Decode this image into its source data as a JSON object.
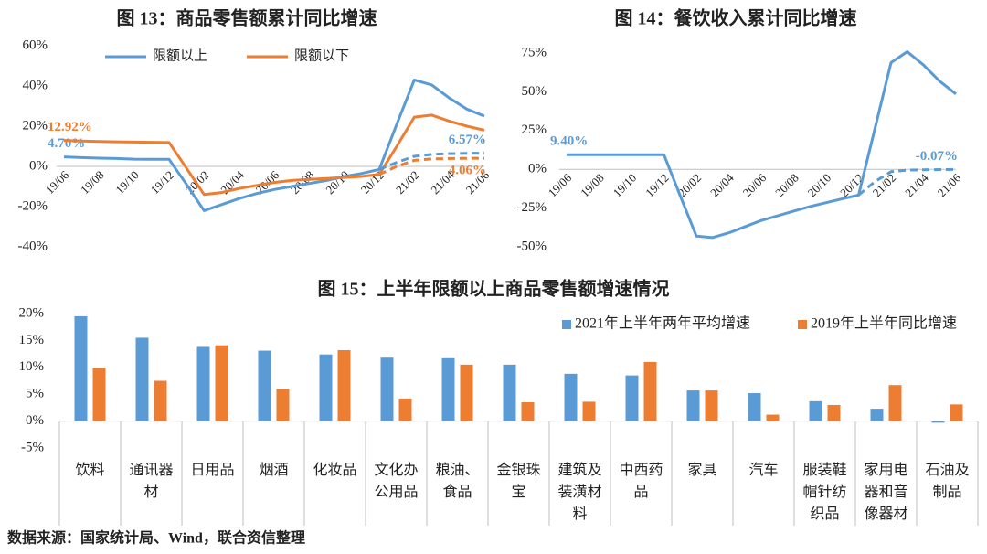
{
  "chart_data": [
    {
      "type": "line",
      "title": "图 13：商品零售额累计同比增速",
      "legend": "top",
      "categories": [
        "19/06",
        null,
        "19/08",
        null,
        "19/10",
        null,
        "19/12",
        null,
        "20/02",
        null,
        "20/04",
        null,
        "20/06",
        null,
        "20/08",
        null,
        "20/10",
        null,
        "20/12",
        null,
        "21/02",
        null,
        "21/04",
        null,
        "21/06"
      ],
      "ylim": [
        -40,
        60
      ],
      "yticks": [
        {
          "value": -40,
          "label": "-40%"
        },
        {
          "value": -20,
          "label": "-20%"
        },
        {
          "value": 0,
          "label": "0%"
        },
        {
          "value": 20,
          "label": "20%"
        },
        {
          "value": 40,
          "label": "40%"
        },
        {
          "value": 60,
          "label": "60%"
        }
      ],
      "series": [
        {
          "name": "限额以上",
          "color": "#5b9bd5",
          "values": [
            4.7,
            4.4,
            4.1,
            3.9,
            3.6,
            3.5,
            3.5,
            -9,
            -22,
            -19,
            -16,
            -13.5,
            -11.5,
            -10,
            -8.5,
            -7,
            -5,
            -3.5,
            -1.5,
            21,
            43,
            40.5,
            34,
            28.5,
            25
          ],
          "value_labels": [
            "4.70%",
            null,
            null,
            null,
            null,
            null,
            null,
            null,
            null,
            null,
            null,
            null,
            null,
            null,
            null,
            null,
            null,
            null,
            null,
            null,
            null,
            null,
            null,
            null,
            null
          ]
        },
        {
          "name": "限额以下",
          "color": "#ed7d31",
          "values": [
            12.92,
            12.6,
            12.4,
            12.2,
            12.1,
            12.0,
            11.9,
            -1,
            -14,
            -13,
            -11,
            -9.5,
            -8,
            -7,
            -6.5,
            -6,
            -5.5,
            -5,
            -4,
            10,
            24.5,
            25.5,
            22.5,
            20,
            18
          ],
          "value_labels": [
            "12.92%",
            null,
            null,
            null,
            null,
            null,
            null,
            null,
            null,
            null,
            null,
            null,
            null,
            null,
            null,
            null,
            null,
            null,
            null,
            null,
            null,
            null,
            null,
            null,
            null
          ]
        },
        {
          "color": "#5b9bd5",
          "dashed": true,
          "values": [
            null,
            null,
            null,
            null,
            null,
            null,
            null,
            null,
            null,
            null,
            null,
            null,
            null,
            null,
            null,
            null,
            null,
            null,
            -1.5,
            2,
            5,
            6,
            6.3,
            6.5,
            6.57
          ],
          "value_labels": [
            null,
            null,
            null,
            null,
            null,
            null,
            null,
            null,
            null,
            null,
            null,
            null,
            null,
            null,
            null,
            null,
            null,
            null,
            null,
            null,
            null,
            null,
            null,
            null,
            "6.57%"
          ]
        },
        {
          "color": "#ed7d31",
          "dashed": true,
          "values": [
            null,
            null,
            null,
            null,
            null,
            null,
            null,
            null,
            null,
            null,
            null,
            null,
            null,
            null,
            null,
            null,
            null,
            null,
            -4,
            0,
            3,
            3.7,
            3.9,
            4.0,
            4.06
          ],
          "value_labels": [
            null,
            null,
            null,
            null,
            null,
            null,
            null,
            null,
            null,
            null,
            null,
            null,
            null,
            null,
            null,
            null,
            null,
            null,
            null,
            null,
            null,
            null,
            null,
            null,
            "4.06%"
          ]
        }
      ]
    },
    {
      "type": "line",
      "title": "图 14：餐饮收入累计同比增速",
      "categories": [
        "19/06",
        null,
        "19/08",
        null,
        "19/10",
        null,
        "19/12",
        null,
        "20/02",
        null,
        "20/04",
        null,
        "20/06",
        null,
        "20/08",
        null,
        "20/10",
        null,
        "20/12",
        null,
        "21/02",
        null,
        "21/04",
        null,
        "21/06"
      ],
      "ylim": [
        -50,
        75
      ],
      "yticks": [
        {
          "value": -50,
          "label": "-50%"
        },
        {
          "value": -25,
          "label": "-25%"
        },
        {
          "value": 0,
          "label": "0%"
        },
        {
          "value": 25,
          "label": "25%"
        },
        {
          "value": 50,
          "label": "50%"
        },
        {
          "value": 75,
          "label": "75%"
        }
      ],
      "series": [
        {
          "color": "#5b9bd5",
          "values": [
            9.4,
            9.4,
            9.4,
            9.4,
            9.4,
            9.4,
            9.4,
            -17,
            -43.1,
            -44,
            -41,
            -37,
            -33,
            -30,
            -27,
            -24,
            -21.5,
            -19,
            -16.6,
            26,
            68.8,
            75.9,
            67.3,
            56.8,
            48.6
          ],
          "value_labels": [
            "9.40%",
            null,
            null,
            null,
            null,
            null,
            null,
            null,
            null,
            null,
            null,
            null,
            null,
            null,
            null,
            null,
            null,
            null,
            null,
            null,
            null,
            null,
            null,
            null,
            null
          ]
        },
        {
          "color": "#5b9bd5",
          "dashed": true,
          "values": [
            null,
            null,
            null,
            null,
            null,
            null,
            null,
            null,
            null,
            null,
            null,
            null,
            null,
            null,
            null,
            null,
            null,
            null,
            -16.6,
            -8,
            -1.5,
            -0.5,
            -0.3,
            -0.2,
            -0.07
          ],
          "value_labels": [
            null,
            null,
            null,
            null,
            null,
            null,
            null,
            null,
            null,
            null,
            null,
            null,
            null,
            null,
            null,
            null,
            null,
            null,
            null,
            null,
            null,
            null,
            null,
            null,
            "-0.07%"
          ]
        }
      ]
    },
    {
      "type": "bar",
      "title": "图 15：上半年限额以上商品零售额增速情况",
      "legend": "top-right",
      "categories": [
        "饮料",
        "通讯器材",
        "日用品",
        "烟酒",
        "化妆品",
        "文化办公用品",
        "粮油、食品",
        "金银珠宝",
        "建筑及装潢材料",
        "中西药品",
        "家具",
        "汽车",
        "服装鞋帽针纺织品",
        "家用电器和音像器材",
        "石油及制品"
      ],
      "ylim": [
        -5,
        20
      ],
      "yticks": [
        {
          "value": -5,
          "label": "-5%"
        },
        {
          "value": 0,
          "label": "0%"
        },
        {
          "value": 5,
          "label": "5%"
        },
        {
          "value": 10,
          "label": "10%"
        },
        {
          "value": 15,
          "label": "15%"
        },
        {
          "value": 20,
          "label": "20%"
        }
      ],
      "series": [
        {
          "name": "2021年上半年两年平均增速",
          "color": "#5b9bd5",
          "values": [
            19.5,
            15.5,
            13.8,
            13.1,
            12.4,
            11.8,
            11.7,
            10.5,
            8.8,
            8.5,
            5.7,
            5.2,
            3.7,
            2.3,
            -0.3
          ]
        },
        {
          "name": "2019年上半年同比增速",
          "color": "#ed7d31",
          "values": [
            9.9,
            7.5,
            14.1,
            6.0,
            13.2,
            4.2,
            10.5,
            3.5,
            3.6,
            11.0,
            5.7,
            1.2,
            3.0,
            6.7,
            3.1
          ]
        }
      ]
    }
  ],
  "source": "数据来源：国家统计局、Wind，联合资信整理"
}
